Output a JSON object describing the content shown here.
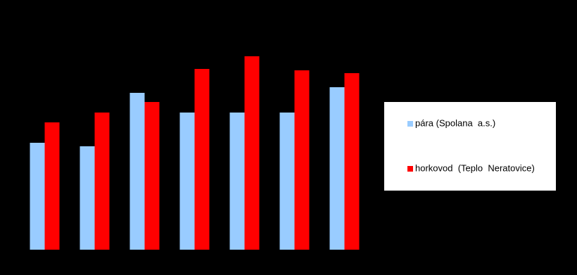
{
  "chart_data": {
    "type": "bar",
    "categories": [
      null,
      null,
      null,
      null,
      null,
      null,
      null
    ],
    "series": [
      {
        "name": "pára (Spolana  a.s.)",
        "color": "#99ccff",
        "values": [
          152,
          147,
          223,
          195,
          195,
          195,
          231
        ]
      },
      {
        "name": "horkovod  (Teplo  Neratovice)",
        "color": "#ff0000",
        "values": [
          181,
          195,
          210,
          257,
          275,
          255,
          251
        ]
      }
    ],
    "ylim": [
      0,
      300
    ],
    "legend": "right"
  }
}
